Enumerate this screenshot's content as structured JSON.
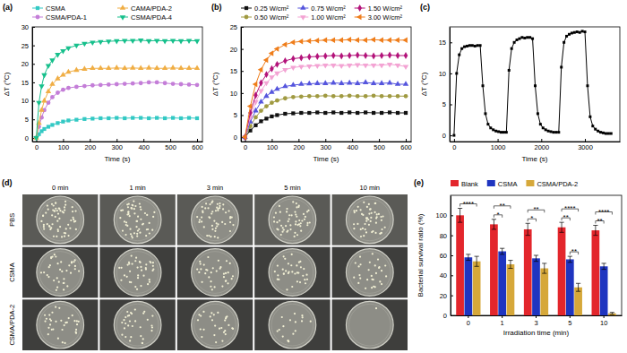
{
  "chart_data": [
    {
      "type": "line",
      "title": "(a)",
      "x_label": "Time (s)",
      "y_label": "ΔT (°C)",
      "xlim": [
        -15,
        620
      ],
      "xticks": [
        0,
        100,
        200,
        300,
        400,
        500,
        600
      ],
      "ylim": [
        -1,
        30
      ],
      "yticks": [
        0,
        5,
        10,
        15,
        20,
        25,
        30
      ],
      "legend": "top",
      "x": [
        0,
        10,
        20,
        30,
        45,
        60,
        80,
        100,
        120,
        150,
        180,
        210,
        240,
        270,
        300,
        330,
        360,
        390,
        420,
        450,
        480,
        510,
        540,
        570,
        600
      ],
      "series": [
        {
          "name": "CSMA",
          "color": "#33c9c4",
          "marker": "square",
          "values": [
            0,
            1,
            1.8,
            2.4,
            3,
            3.5,
            4,
            4.4,
            4.7,
            4.9,
            5.1,
            5.2,
            5.3,
            5.3,
            5.4,
            5.3,
            5.4,
            5.4,
            5.3,
            5.4,
            5.3,
            5.4,
            5.3,
            5.4,
            5.3
          ]
        },
        {
          "name": "CSMA/PDA-1",
          "color": "#c47ed8",
          "marker": "circle",
          "values": [
            0,
            3,
            5.5,
            7.5,
            9.5,
            11,
            12.2,
            13,
            13.5,
            13.8,
            14,
            14.2,
            14.3,
            14.4,
            14.5,
            14.6,
            14.7,
            14.8,
            15,
            15,
            14.8,
            14.6,
            14.5,
            14.4,
            14.3
          ]
        },
        {
          "name": "CAMA/PDA-2",
          "color": "#f0ae45",
          "marker": "triangle-up",
          "values": [
            0,
            4,
            7.5,
            10,
            12.5,
            14.5,
            16,
            17,
            17.8,
            18.3,
            18.6,
            18.8,
            18.8,
            18.8,
            18.9,
            18.8,
            18.9,
            18.8,
            18.9,
            18.8,
            18.8,
            18.9,
            18.8,
            18.8,
            18.8
          ]
        },
        {
          "name": "CSMA/PDA-4",
          "color": "#17c08c",
          "marker": "triangle-down",
          "values": [
            0,
            9.5,
            14,
            17,
            19.5,
            21,
            22.5,
            23.5,
            24.3,
            25,
            25.5,
            25.8,
            26,
            26.1,
            26.2,
            26.3,
            26.3,
            26.4,
            26.2,
            26.3,
            26.2,
            26.3,
            26.2,
            26.3,
            26.2
          ]
        }
      ]
    },
    {
      "type": "line",
      "title": "(b)",
      "x_label": "Time (s)",
      "y_label": "ΔT (°C)",
      "xlim": [
        -15,
        620
      ],
      "xticks": [
        0,
        100,
        200,
        300,
        400,
        500,
        600
      ],
      "ylim": [
        -1,
        25
      ],
      "yticks": [
        0,
        5,
        10,
        15,
        20,
        25
      ],
      "legend": "top",
      "x": [
        0,
        20,
        40,
        60,
        80,
        100,
        120,
        150,
        180,
        210,
        240,
        270,
        300,
        330,
        360,
        390,
        420,
        450,
        480,
        510,
        540,
        570,
        600
      ],
      "series": [
        {
          "name": "0.25 W/cm²",
          "color": "#111111",
          "marker": "square",
          "values": [
            0,
            1.5,
            2.7,
            3.6,
            4.2,
            4.7,
            5.0,
            5.3,
            5.4,
            5.5,
            5.5,
            5.6,
            5.5,
            5.6,
            5.5,
            5.6,
            5.5,
            5.6,
            5.5,
            5.5,
            5.6,
            5.5,
            5.5
          ]
        },
        {
          "name": "0.50 W/cm²",
          "color": "#a09a41",
          "marker": "circle",
          "values": [
            0,
            2.5,
            4.5,
            6,
            7,
            7.8,
            8.3,
            8.8,
            9.1,
            9.2,
            9.3,
            9.3,
            9.4,
            9.3,
            9.3,
            9.4,
            9.3,
            9.3,
            9.4,
            9.3,
            9.3,
            9.3,
            9.3
          ]
        },
        {
          "name": "0.75 W/cm²",
          "color": "#5555dd",
          "marker": "triangle-up",
          "values": [
            0,
            3.5,
            6,
            8,
            9.3,
            10.2,
            10.9,
            11.5,
            11.8,
            12,
            12.1,
            12.2,
            12.2,
            12.3,
            12.2,
            12.3,
            12.2,
            12.4,
            12.2,
            12.2,
            12.3,
            12.0,
            12.0
          ]
        },
        {
          "name": "1.00 W/cm²",
          "color": "#f3a3d3",
          "marker": "triangle-down",
          "values": [
            0,
            4.5,
            8,
            10.5,
            12.3,
            13.6,
            14.5,
            15.3,
            15.8,
            16.0,
            16.1,
            16.2,
            16.3,
            16.3,
            16.2,
            16.3,
            16.4,
            16.3,
            16.3,
            16.3,
            16.5,
            16.3,
            16.0
          ]
        },
        {
          "name": "1.50 W/cm²",
          "color": "#b3137a",
          "marker": "diamond",
          "values": [
            0,
            5.5,
            9.5,
            12.3,
            14.2,
            15.5,
            16.5,
            17.3,
            17.8,
            18.0,
            18.2,
            18.3,
            18.4,
            18.5,
            18.4,
            18.5,
            18.6,
            18.5,
            18.4,
            18.5,
            18.6,
            18.5,
            18.5
          ]
        },
        {
          "name": "3.00 W/cm²",
          "color": "#ef7d1a",
          "marker": "triangle-left",
          "values": [
            0,
            7,
            12,
            15.3,
            17.5,
            19,
            20,
            21,
            21.5,
            21.7,
            21.8,
            21.9,
            22,
            22,
            22,
            22.1,
            22,
            22,
            22.1,
            22,
            22,
            22,
            22
          ]
        }
      ]
    },
    {
      "type": "line",
      "title": "(c)",
      "x_label": "Time (s)",
      "y_label": "ΔT (°C)",
      "xlim": [
        -100,
        3800
      ],
      "xticks": [
        0,
        1000,
        2000,
        3000
      ],
      "ylim": [
        -1,
        17.5
      ],
      "yticks": [
        0,
        5,
        10,
        15
      ],
      "color": "#000000",
      "marker": "square",
      "x": [
        0,
        60,
        120,
        180,
        240,
        300,
        360,
        420,
        480,
        540,
        600,
        660,
        720,
        780,
        840,
        900,
        960,
        1020,
        1080,
        1140,
        1200,
        1260,
        1320,
        1380,
        1440,
        1500,
        1560,
        1620,
        1680,
        1740,
        1800,
        1860,
        1920,
        1980,
        2040,
        2100,
        2160,
        2220,
        2280,
        2340,
        2400,
        2460,
        2520,
        2580,
        2640,
        2700,
        2760,
        2820,
        2880,
        2940,
        3000,
        3060,
        3120,
        3180,
        3240,
        3300,
        3360,
        3420,
        3480,
        3540,
        3600
      ],
      "values": [
        0,
        10,
        13,
        14,
        14.3,
        14.4,
        14.5,
        14.5,
        14.4,
        14.5,
        14.5,
        8,
        3.5,
        1.8,
        1.2,
        0.9,
        0.7,
        0.6,
        0.5,
        0.5,
        0.5,
        10.5,
        14,
        15,
        15.4,
        15.6,
        15.8,
        15.7,
        15.8,
        15.8,
        15.6,
        8,
        3.5,
        1.8,
        1.2,
        0.9,
        0.7,
        0.6,
        0.5,
        0.5,
        0.5,
        11,
        15,
        16,
        16.3,
        16.5,
        16.6,
        16.7,
        16.6,
        16.8,
        16.7,
        8,
        3,
        1.5,
        1,
        0.7,
        0.5,
        0.4,
        0.3,
        0.3,
        0.3
      ]
    },
    {
      "type": "image_grid",
      "title": "(d)",
      "columns": [
        "0 min",
        "1 min",
        "3 min",
        "5 min",
        "10 min"
      ],
      "rows": [
        "PBS",
        "CSMA",
        "CSMA/PDA-2"
      ]
    },
    {
      "type": "bar",
      "title": "(e)",
      "x_label": "Irradiation time (min)",
      "y_label": "Bacterial survival ratio (%)",
      "categories": [
        "0",
        "1",
        "3",
        "5",
        "10"
      ],
      "ylim": [
        0,
        120
      ],
      "yticks": [
        0,
        20,
        40,
        60,
        80,
        100
      ],
      "legend": "top",
      "series": [
        {
          "name": "Blank",
          "color": "#e3262c",
          "values": [
            100,
            91,
            86,
            88,
            85
          ],
          "errors": [
            7,
            5,
            6,
            5,
            5
          ]
        },
        {
          "name": "CSMA",
          "color": "#1f35c0",
          "values": [
            58,
            64,
            57,
            56,
            49
          ],
          "errors": [
            3,
            3,
            3,
            3,
            3
          ]
        },
        {
          "name": "CSMA/PDA-2",
          "color": "#d6a83a",
          "values": [
            54,
            51,
            47,
            28,
            2
          ],
          "errors": [
            5,
            4,
            5,
            4,
            1
          ]
        }
      ],
      "annotations": [
        {
          "text": "****",
          "category": "0",
          "from": "Blank",
          "to": "CSMA/PDA-2"
        },
        {
          "text": "*",
          "category": "1",
          "from": "Blank",
          "to": "CSMA"
        },
        {
          "text": "**",
          "category": "1",
          "from": "Blank",
          "to": "CSMA/PDA-2"
        },
        {
          "text": "*",
          "category": "3",
          "from": "Blank",
          "to": "CSMA"
        },
        {
          "text": "**",
          "category": "3",
          "from": "Blank",
          "to": "CSMA/PDA-2"
        },
        {
          "text": "**",
          "category": "5",
          "from": "Blank",
          "to": "CSMA"
        },
        {
          "text": "**",
          "category": "5",
          "from": "CSMA",
          "to": "CSMA/PDA-2"
        },
        {
          "text": "****",
          "category": "5",
          "from": "Blank",
          "to": "CSMA/PDA-2"
        },
        {
          "text": "**",
          "category": "10",
          "from": "Blank",
          "to": "CSMA"
        },
        {
          "text": "****",
          "category": "10",
          "from": "Blank",
          "to": "CSMA/PDA-2"
        }
      ]
    }
  ]
}
